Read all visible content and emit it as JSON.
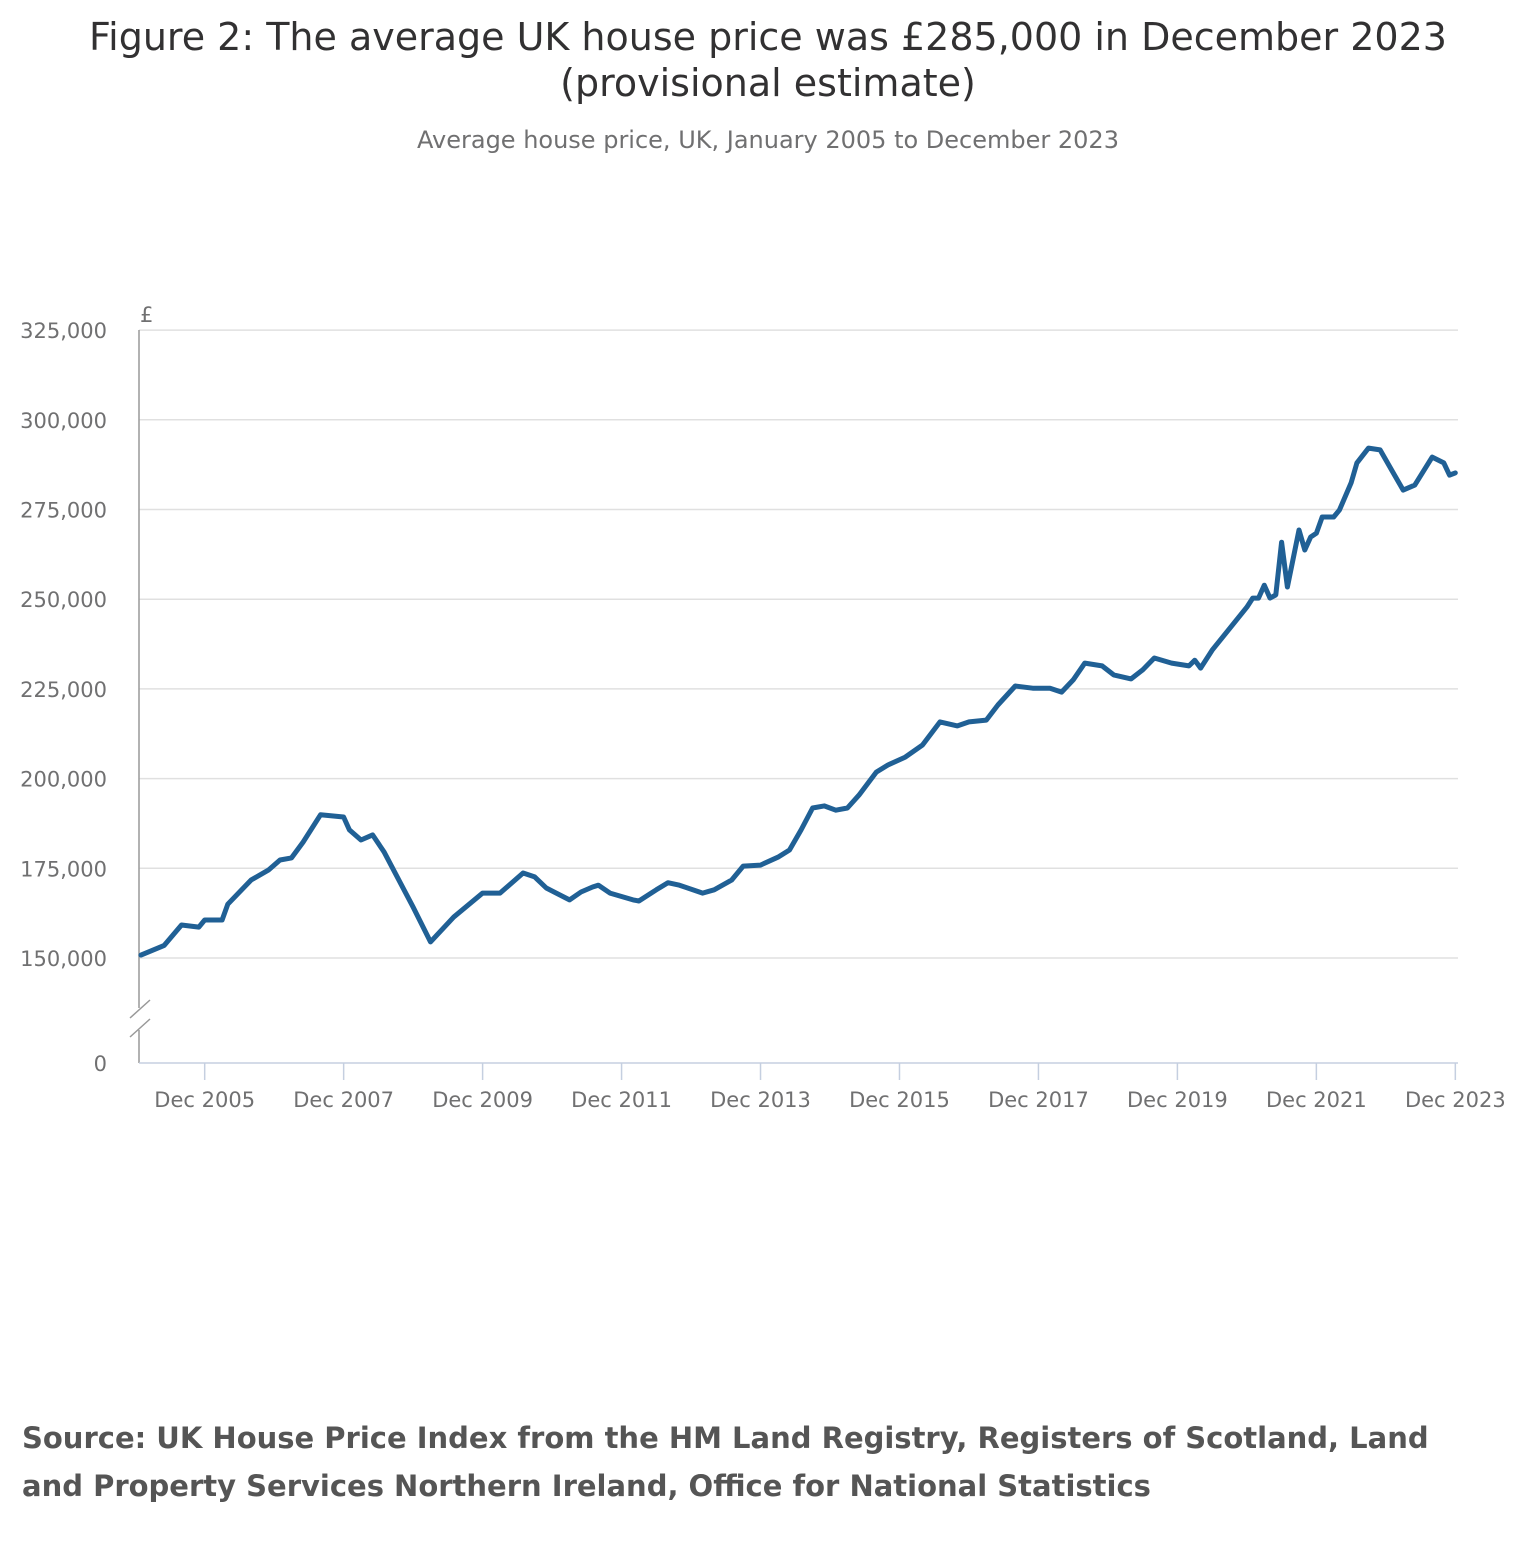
{
  "chart_data": {
    "type": "line",
    "title": "Figure 2: The average UK house price was £285,000 in December 2023 (provisional estimate)",
    "subtitle": "Average house price, UK, January 2005 to December 2023",
    "ylabel": "£",
    "xlabel": "",
    "ylim": [
      150000,
      325000
    ],
    "y_axis_break": true,
    "y_ticks": [
      "0",
      "150,000",
      "175,000",
      "200,000",
      "225,000",
      "250,000",
      "275,000",
      "300,000",
      "325,000"
    ],
    "x_ticks": [
      "Dec 2005",
      "Dec 2007",
      "Dec 2009",
      "Dec 2011",
      "Dec 2013",
      "Dec 2015",
      "Dec 2017",
      "Dec 2019",
      "Dec 2021",
      "Dec 2023"
    ],
    "grid": "horizontal",
    "line_color": "#206095",
    "series": [
      {
        "points": [
          [
            "2005-01",
            150800
          ],
          [
            "2005-05",
            153500
          ],
          [
            "2005-08",
            159200
          ],
          [
            "2005-11",
            158600
          ],
          [
            "2005-12",
            160600
          ],
          [
            "2006-03",
            160600
          ],
          [
            "2006-04",
            165000
          ],
          [
            "2006-08",
            171700
          ],
          [
            "2006-11",
            174500
          ],
          [
            "2007-01",
            177300
          ],
          [
            "2007-03",
            177900
          ],
          [
            "2007-05",
            182300
          ],
          [
            "2007-08",
            189900
          ],
          [
            "2007-12",
            189300
          ],
          [
            "2008-01",
            185700
          ],
          [
            "2008-03",
            182900
          ],
          [
            "2008-05",
            184300
          ],
          [
            "2008-07",
            179500
          ],
          [
            "2008-12",
            164200
          ],
          [
            "2009-03",
            154500
          ],
          [
            "2009-07",
            161400
          ],
          [
            "2009-12",
            168100
          ],
          [
            "2010-03",
            168100
          ],
          [
            "2010-07",
            173700
          ],
          [
            "2010-09",
            172600
          ],
          [
            "2010-11",
            169500
          ],
          [
            "2011-03",
            166200
          ],
          [
            "2011-05",
            168400
          ],
          [
            "2011-07",
            169800
          ],
          [
            "2011-08",
            170300
          ],
          [
            "2011-10",
            168100
          ],
          [
            "2012-02",
            166200
          ],
          [
            "2012-03",
            165900
          ],
          [
            "2012-06",
            169000
          ],
          [
            "2012-08",
            171000
          ],
          [
            "2012-10",
            170300
          ],
          [
            "2013-02",
            168100
          ],
          [
            "2013-04",
            169000
          ],
          [
            "2013-07",
            171700
          ],
          [
            "2013-09",
            175600
          ],
          [
            "2013-12",
            175900
          ],
          [
            "2014-03",
            178100
          ],
          [
            "2014-05",
            180100
          ],
          [
            "2014-07",
            185700
          ],
          [
            "2014-09",
            191800
          ],
          [
            "2014-11",
            192400
          ],
          [
            "2015-01",
            191200
          ],
          [
            "2015-03",
            191800
          ],
          [
            "2015-05",
            195400
          ],
          [
            "2015-08",
            201800
          ],
          [
            "2015-10",
            203800
          ],
          [
            "2016-01",
            206000
          ],
          [
            "2016-04",
            209400
          ],
          [
            "2016-07",
            215800
          ],
          [
            "2016-10",
            214700
          ],
          [
            "2016-12",
            215800
          ],
          [
            "2017-03",
            216300
          ],
          [
            "2017-05",
            220500
          ],
          [
            "2017-08",
            225800
          ],
          [
            "2017-11",
            225200
          ],
          [
            "2018-02",
            225200
          ],
          [
            "2018-04",
            224100
          ],
          [
            "2018-06",
            227500
          ],
          [
            "2018-08",
            232200
          ],
          [
            "2018-11",
            231400
          ],
          [
            "2019-01",
            228900
          ],
          [
            "2019-04",
            227800
          ],
          [
            "2019-06",
            230300
          ],
          [
            "2019-08",
            233600
          ],
          [
            "2019-11",
            232200
          ],
          [
            "2020-02",
            231400
          ],
          [
            "2020-03",
            233000
          ],
          [
            "2020-04",
            230800
          ],
          [
            "2020-06",
            235800
          ],
          [
            "2020-12",
            247800
          ],
          [
            "2021-01",
            250300
          ],
          [
            "2021-02",
            250300
          ],
          [
            "2021-03",
            253900
          ],
          [
            "2021-04",
            250300
          ],
          [
            "2021-05",
            251200
          ],
          [
            "2021-06",
            265900
          ],
          [
            "2021-07",
            253400
          ],
          [
            "2021-09",
            269300
          ],
          [
            "2021-10",
            263700
          ],
          [
            "2021-11",
            267300
          ],
          [
            "2021-12",
            268400
          ],
          [
            "2022-01",
            272900
          ],
          [
            "2022-03",
            272900
          ],
          [
            "2022-04",
            274900
          ],
          [
            "2022-06",
            282400
          ],
          [
            "2022-07",
            288000
          ],
          [
            "2022-09",
            292100
          ],
          [
            "2022-11",
            291600
          ],
          [
            "2023-01",
            286000
          ],
          [
            "2023-03",
            280400
          ],
          [
            "2023-05",
            281800
          ],
          [
            "2023-08",
            289600
          ],
          [
            "2023-10",
            288000
          ],
          [
            "2023-11",
            284600
          ],
          [
            "2023-12",
            285200
          ]
        ]
      }
    ]
  },
  "source": "Source: UK House Price Index from the HM Land Registry, Registers of Scotland, Land and Property Services Northern Ireland, Office for National Statistics"
}
